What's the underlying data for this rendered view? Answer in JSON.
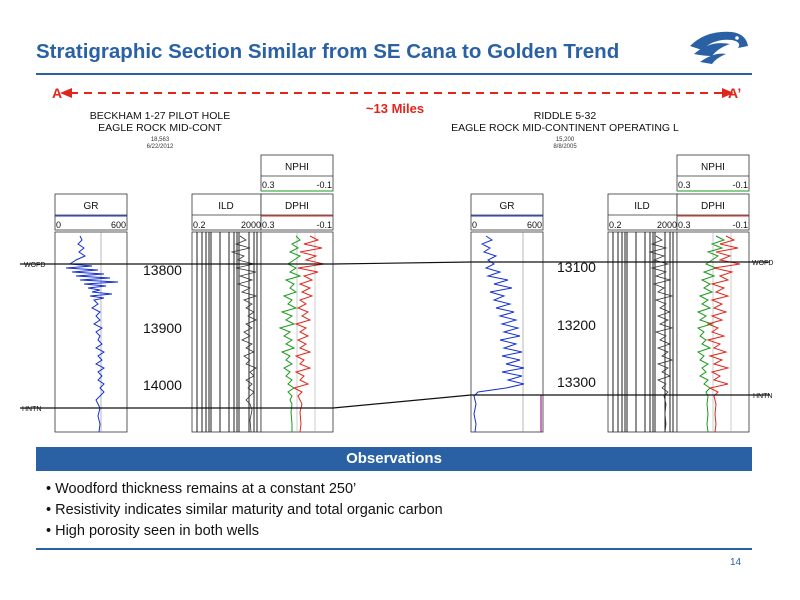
{
  "title": "Stratigraphic Section Similar from SE Cana to Golden Trend",
  "logo_icon": "eagle-head-icon",
  "section_line": {
    "start_label": "A",
    "end_label": "A’",
    "distance": "~13 Miles",
    "color": "#e0261c"
  },
  "wells": [
    {
      "name_line1": "BECKHAM 1-27 PILOT HOLE",
      "name_line2": "EAGLE ROCK MID-CONT",
      "meta_line1": "18,563",
      "meta_line2": "6/22/2012",
      "depths": [
        "13800",
        "13900",
        "14000"
      ]
    },
    {
      "name_line1": "RIDDLE 5-32",
      "name_line2": "EAGLE ROCK MID-CONTINENT OPERATING L",
      "meta_line1": "15,200",
      "meta_line2": "8/8/2005",
      "depths": [
        "13100",
        "13200",
        "13300"
      ]
    }
  ],
  "tracks": {
    "gr": {
      "name": "GR",
      "min": "0",
      "max": "600"
    },
    "ild": {
      "name": "ILD",
      "min": "0.2",
      "max": "2000"
    },
    "nphi": {
      "name": "NPHI",
      "min": "0.3",
      "max": "-0.1"
    },
    "dphi": {
      "name": "DPHI",
      "min": "0.3",
      "max": "-0.1"
    }
  },
  "formation_tops": {
    "top": "WOFD",
    "base": "HNTN"
  },
  "colors": {
    "brand_blue": "#2a61a4",
    "gr_curve": "#1530d0",
    "nphi_curve": "#1a9a1a",
    "dphi_curve": "#e0261c"
  },
  "observations": {
    "header": "Observations",
    "items": [
      "Woodford thickness remains at a constant 250’",
      "Resistivity indicates similar maturity and total organic carbon",
      "High porosity seen in both wells"
    ]
  },
  "page_number": "14"
}
